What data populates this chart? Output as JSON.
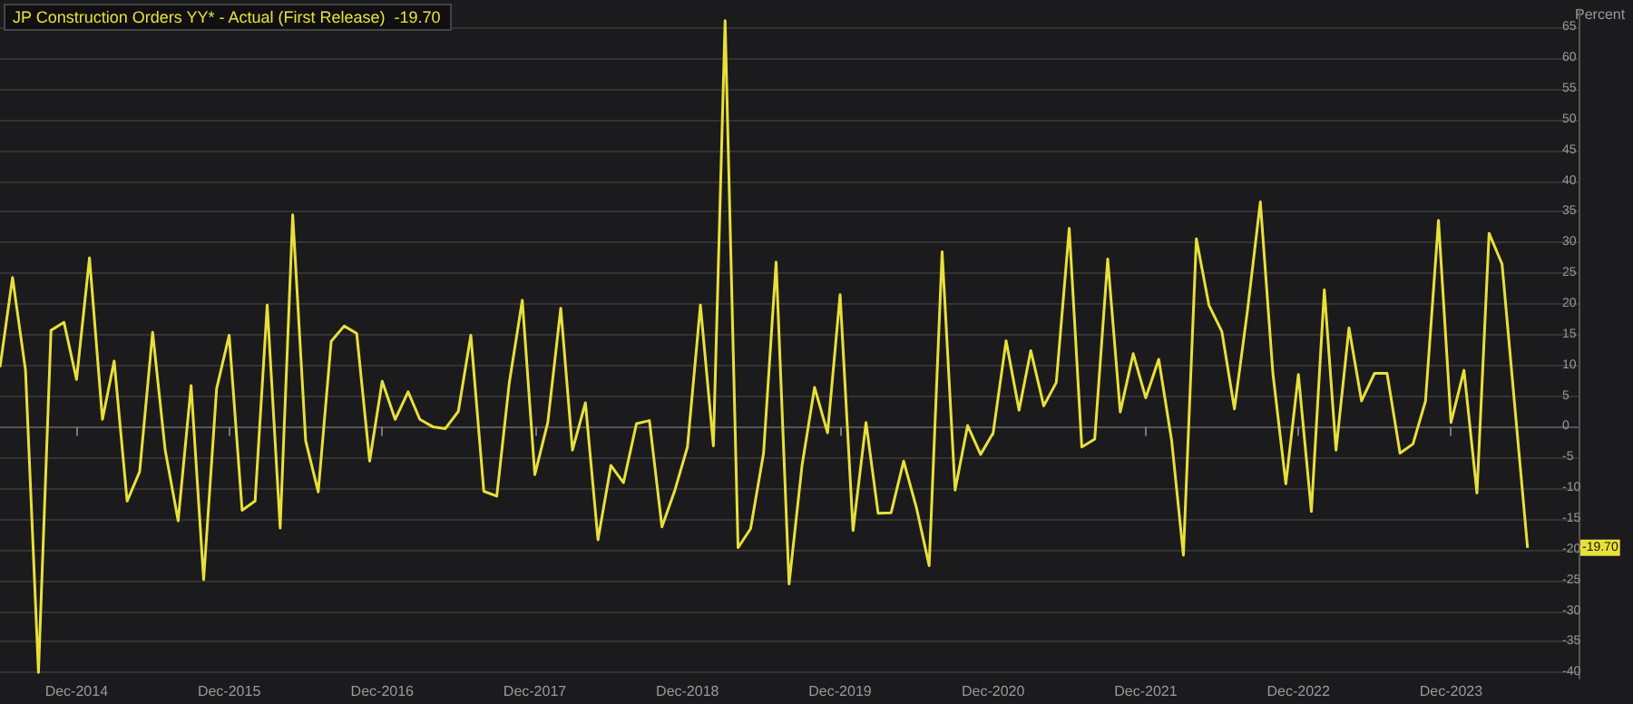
{
  "chart_data": {
    "type": "line",
    "title": "JP Construction Orders YY* - Actual (First Release)  -19.70",
    "ylabel": "Percent",
    "x": [
      "2014-06",
      "2014-07",
      "2014-08",
      "2014-09",
      "2014-10",
      "2014-11",
      "2014-12",
      "2015-01",
      "2015-02",
      "2015-03",
      "2015-04",
      "2015-05",
      "2015-06",
      "2015-07",
      "2015-08",
      "2015-09",
      "2015-10",
      "2015-11",
      "2015-12",
      "2016-01",
      "2016-02",
      "2016-03",
      "2016-04",
      "2016-05",
      "2016-06",
      "2016-07",
      "2016-08",
      "2016-09",
      "2016-10",
      "2016-11",
      "2016-12",
      "2017-01",
      "2017-02",
      "2017-03",
      "2017-04",
      "2017-05",
      "2017-06",
      "2017-07",
      "2017-08",
      "2017-09",
      "2017-10",
      "2017-11",
      "2017-12",
      "2018-01",
      "2018-02",
      "2018-03",
      "2018-04",
      "2018-05",
      "2018-06",
      "2018-07",
      "2018-08",
      "2018-09",
      "2018-10",
      "2018-11",
      "2018-12",
      "2019-01",
      "2019-02",
      "2019-03",
      "2019-04",
      "2019-05",
      "2019-06",
      "2019-07",
      "2019-08",
      "2019-09",
      "2019-10",
      "2019-11",
      "2019-12",
      "2020-01",
      "2020-02",
      "2020-03",
      "2020-04",
      "2020-05",
      "2020-06",
      "2020-07",
      "2020-08",
      "2020-09",
      "2020-10",
      "2020-11",
      "2020-12",
      "2021-01",
      "2021-02",
      "2021-03",
      "2021-04",
      "2021-05",
      "2021-06",
      "2021-07",
      "2021-08",
      "2021-09",
      "2021-10",
      "2021-11",
      "2021-12",
      "2022-01",
      "2022-02",
      "2022-03",
      "2022-04",
      "2022-05",
      "2022-06",
      "2022-07",
      "2022-08",
      "2022-09",
      "2022-10",
      "2022-11",
      "2022-12",
      "2023-01",
      "2023-02",
      "2023-03",
      "2023-04",
      "2023-05",
      "2023-06",
      "2023-07",
      "2023-08",
      "2023-09",
      "2023-10",
      "2023-11",
      "2023-12",
      "2024-01",
      "2024-02",
      "2024-03",
      "2024-04",
      "2024-05",
      "2024-06"
    ],
    "series": [
      {
        "color": "#e8e03a",
        "values": [
          9.7,
          24.3,
          9.2,
          -40,
          15.7,
          17,
          7.7,
          27.5,
          1.2,
          10.7,
          -12.1,
          -7.3,
          15.4,
          -3.8,
          -15.3,
          6.7,
          -24.9,
          6.2,
          14.9,
          -13.6,
          -12.1,
          19.8,
          -16.5,
          34.5,
          -2.3,
          -10.6,
          13.9,
          16.4,
          15.2,
          -5.6,
          7.4,
          1.2,
          5.7,
          1.2,
          0,
          -0.3,
          2.5,
          14.9,
          -10.5,
          -11.3,
          7.2,
          20.6,
          -7.8,
          0.7,
          19.3,
          -3.8,
          3.9,
          -18.4,
          -6.3,
          -9.1,
          0.5,
          1,
          -16.3,
          -10.3,
          -3.3,
          19.8,
          -3.1,
          66.1,
          -19.7,
          -16.6,
          -4.3,
          26.8,
          -25.6,
          -6.3,
          6.4,
          -1,
          21.5,
          -16.9,
          0.7,
          -14.1,
          -14,
          -5.6,
          -13.3,
          -22.6,
          28.5,
          -10.3,
          0.2,
          -4.5,
          -1,
          14,
          2.7,
          12.4,
          3.4,
          7.2,
          32.3,
          -3.3,
          -2,
          27.3,
          2.4,
          11.9,
          4.7,
          11,
          -2.3,
          -20.9,
          30.6,
          19.8,
          15.5,
          2.9,
          18.8,
          36.6,
          8.7,
          -9.3,
          8.5,
          -13.8,
          22.3,
          -3.8,
          16.1,
          4.2,
          8.7,
          8.7,
          -4.3,
          -2.8,
          4.2,
          33.6,
          0.7,
          9.2,
          -10.8,
          31.5,
          26.5,
          3.7,
          -19.7
        ]
      }
    ],
    "xlim": [
      "2014-06",
      "2024-10"
    ],
    "xticks": [
      {
        "value": "2014-12",
        "label": "Dec-2014"
      },
      {
        "value": "2015-12",
        "label": "Dec-2015"
      },
      {
        "value": "2016-12",
        "label": "Dec-2016"
      },
      {
        "value": "2017-12",
        "label": "Dec-2017"
      },
      {
        "value": "2018-12",
        "label": "Dec-2018"
      },
      {
        "value": "2019-12",
        "label": "Dec-2019"
      },
      {
        "value": "2020-12",
        "label": "Dec-2020"
      },
      {
        "value": "2021-12",
        "label": "Dec-2021"
      },
      {
        "value": "2022-12",
        "label": "Dec-2022"
      },
      {
        "value": "2023-12",
        "label": "Dec-2023"
      }
    ],
    "ylim": [
      -41,
      68
    ],
    "yticks": [
      -40,
      -35,
      -30,
      -25,
      -20,
      -15,
      -10,
      -5,
      0,
      5,
      10,
      15,
      20,
      25,
      30,
      35,
      40,
      45,
      50,
      55,
      60,
      65
    ],
    "annotations": [
      "-19.70"
    ],
    "grid": "y",
    "marker": "none",
    "line_style": "solid"
  }
}
